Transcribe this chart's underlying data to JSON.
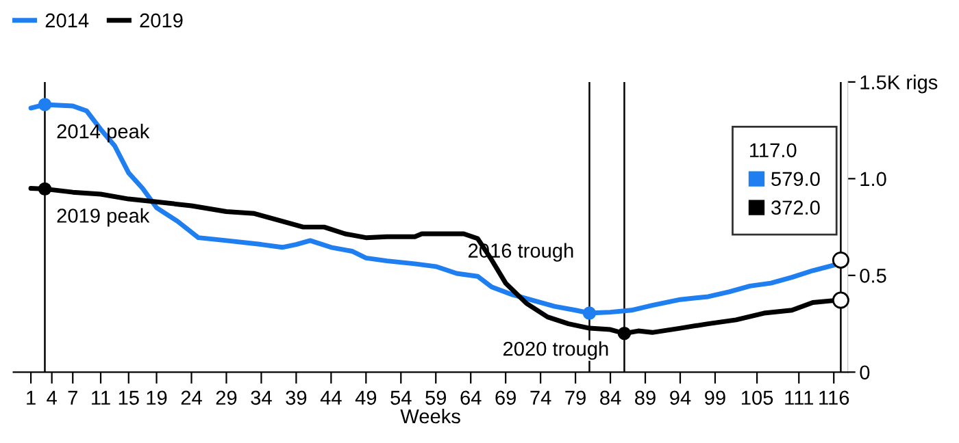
{
  "chart_data": {
    "type": "line",
    "xlabel": "Weeks",
    "legend": "top left",
    "grid": false,
    "line_style": "solid",
    "marker": "none",
    "xlim": [
      -1.5,
      118
    ],
    "xticks": [
      1,
      4,
      7,
      11,
      15,
      19,
      24,
      29,
      34,
      39,
      44,
      49,
      54,
      59,
      64,
      69,
      74,
      79,
      84,
      89,
      94,
      99,
      105,
      111,
      116
    ],
    "ylim": [
      0,
      1.5
    ],
    "yticks": [
      0,
      0.5,
      {
        "value": 1,
        "label": "1.0"
      },
      {
        "value": 1.5,
        "label": "1.5K rigs"
      }
    ],
    "series": [
      {
        "name": "2014",
        "color": "#1f7ff0",
        "x": [
          1,
          3,
          7,
          9,
          11,
          13,
          15,
          17,
          19,
          22,
          25,
          29,
          34,
          37,
          39,
          41,
          44,
          47,
          49,
          52,
          56,
          59,
          62,
          65,
          67,
          70,
          73,
          76,
          79,
          81,
          84,
          87,
          90,
          94,
          98,
          101,
          104,
          107,
          110,
          113,
          116,
          117
        ],
        "values": [
          1.365,
          1.383,
          1.376,
          1.35,
          1.255,
          1.17,
          1.03,
          0.95,
          0.85,
          0.78,
          0.695,
          0.68,
          0.66,
          0.645,
          0.66,
          0.68,
          0.645,
          0.625,
          0.59,
          0.575,
          0.56,
          0.546,
          0.51,
          0.495,
          0.44,
          0.4,
          0.37,
          0.34,
          0.32,
          0.305,
          0.31,
          0.32,
          0.345,
          0.375,
          0.39,
          0.415,
          0.445,
          0.46,
          0.49,
          0.525,
          0.553,
          0.579
        ]
      },
      {
        "name": "2019",
        "color": "#000000",
        "x": [
          1,
          3,
          7,
          11,
          15,
          19,
          24,
          29,
          33,
          37,
          40,
          43,
          46,
          49,
          52,
          56,
          57,
          63,
          65,
          67,
          69,
          72,
          75,
          78,
          81,
          84,
          86,
          88,
          90,
          94,
          98,
          102,
          106,
          110,
          113,
          116,
          117
        ],
        "values": [
          0.95,
          0.947,
          0.93,
          0.92,
          0.895,
          0.88,
          0.86,
          0.83,
          0.82,
          0.78,
          0.75,
          0.75,
          0.715,
          0.695,
          0.7,
          0.7,
          0.715,
          0.715,
          0.69,
          0.58,
          0.46,
          0.355,
          0.285,
          0.25,
          0.227,
          0.22,
          0.2,
          0.213,
          0.205,
          0.227,
          0.25,
          0.27,
          0.305,
          0.32,
          0.36,
          0.37,
          0.372
        ]
      }
    ],
    "ref_lines": [
      {
        "axis": "x",
        "value": 3,
        "color": "#000000"
      },
      {
        "axis": "x",
        "value": 81,
        "color": "#000000"
      },
      {
        "axis": "x",
        "value": 86,
        "color": "#000000"
      },
      {
        "axis": "x",
        "value": 117,
        "color": "#000000"
      }
    ],
    "annotations": [
      {
        "text": "2014 peak",
        "x": 3,
        "y": 1.383
      },
      {
        "text": "2019 peak",
        "x": 3,
        "y": 0.947
      },
      {
        "text": "2016 trough",
        "x": 81,
        "y": 0.305
      },
      {
        "text": "2020 trough",
        "x": 86,
        "y": 0.2
      },
      "117.0",
      "579.0",
      "372.0"
    ]
  }
}
